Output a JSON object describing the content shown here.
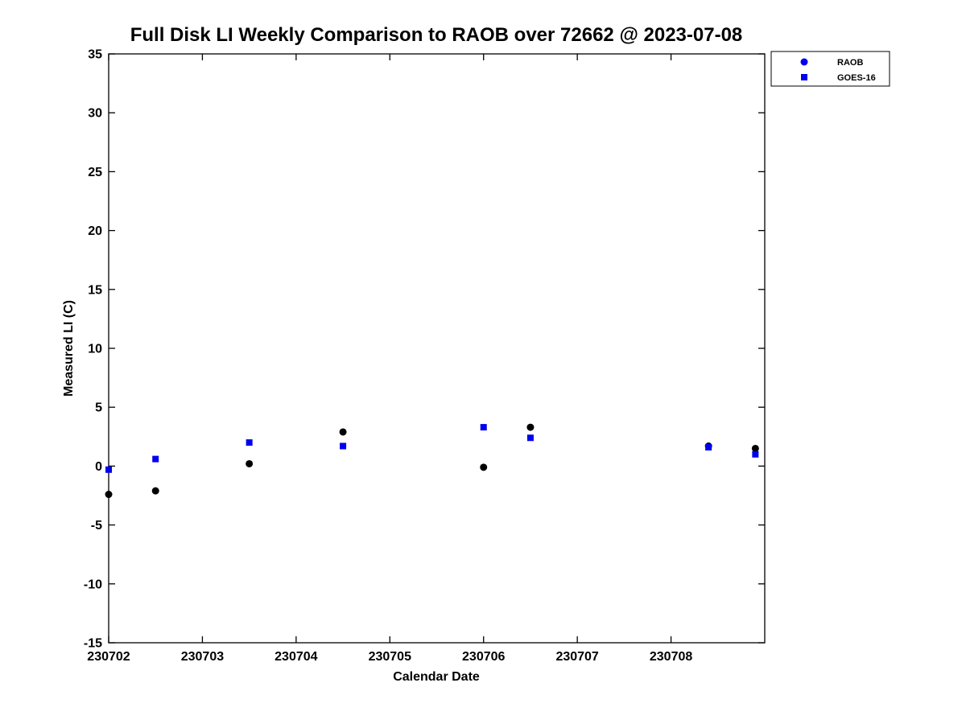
{
  "chart_data": {
    "type": "scatter",
    "title": "Full Disk LI Weekly Comparison to RAOB over 72662 @ 2023-07-08",
    "xlabel": "Calendar Date",
    "ylabel": "Measured LI (C)",
    "xlim": [
      230702,
      230709
    ],
    "ylim": [
      -15,
      35
    ],
    "grid": false,
    "x_ticks": {
      "values": [
        230702,
        230703,
        230704,
        230705,
        230706,
        230707,
        230708
      ],
      "labels": [
        "230702",
        "230703",
        "230704",
        "230705",
        "230706",
        "230707",
        "230708"
      ]
    },
    "y_ticks": {
      "values": [
        -15,
        -10,
        -5,
        0,
        5,
        10,
        15,
        20,
        25,
        30,
        35
      ],
      "labels": [
        "-15",
        "-10",
        "-5",
        "0",
        "5",
        "10",
        "15",
        "20",
        "25",
        "30",
        "35"
      ]
    },
    "legend": {
      "position": "outside-top-right",
      "entries": [
        {
          "label": "RAOB",
          "marker": "circle",
          "color": "#0000EE"
        },
        {
          "label": "GOES-16",
          "marker": "square",
          "color": "#0000EE"
        }
      ]
    },
    "series": [
      {
        "name": "RAOB",
        "marker": "circle",
        "color": "#000000",
        "points": [
          [
            230702.0,
            -2.4
          ],
          [
            230702.5,
            -2.1
          ],
          [
            230703.5,
            0.2
          ],
          [
            230704.5,
            2.9
          ],
          [
            230706.0,
            -0.1
          ],
          [
            230706.5,
            3.3
          ],
          [
            230708.4,
            1.7
          ],
          [
            230708.9,
            1.5
          ]
        ]
      },
      {
        "name": "GOES-16",
        "marker": "square",
        "color": "#0000EE",
        "points": [
          [
            230702.0,
            -0.3
          ],
          [
            230702.5,
            0.6
          ],
          [
            230703.5,
            2.0
          ],
          [
            230704.5,
            1.7
          ],
          [
            230706.0,
            3.3
          ],
          [
            230706.5,
            2.4
          ],
          [
            230708.4,
            1.6
          ],
          [
            230708.9,
            1.0
          ]
        ]
      }
    ]
  }
}
